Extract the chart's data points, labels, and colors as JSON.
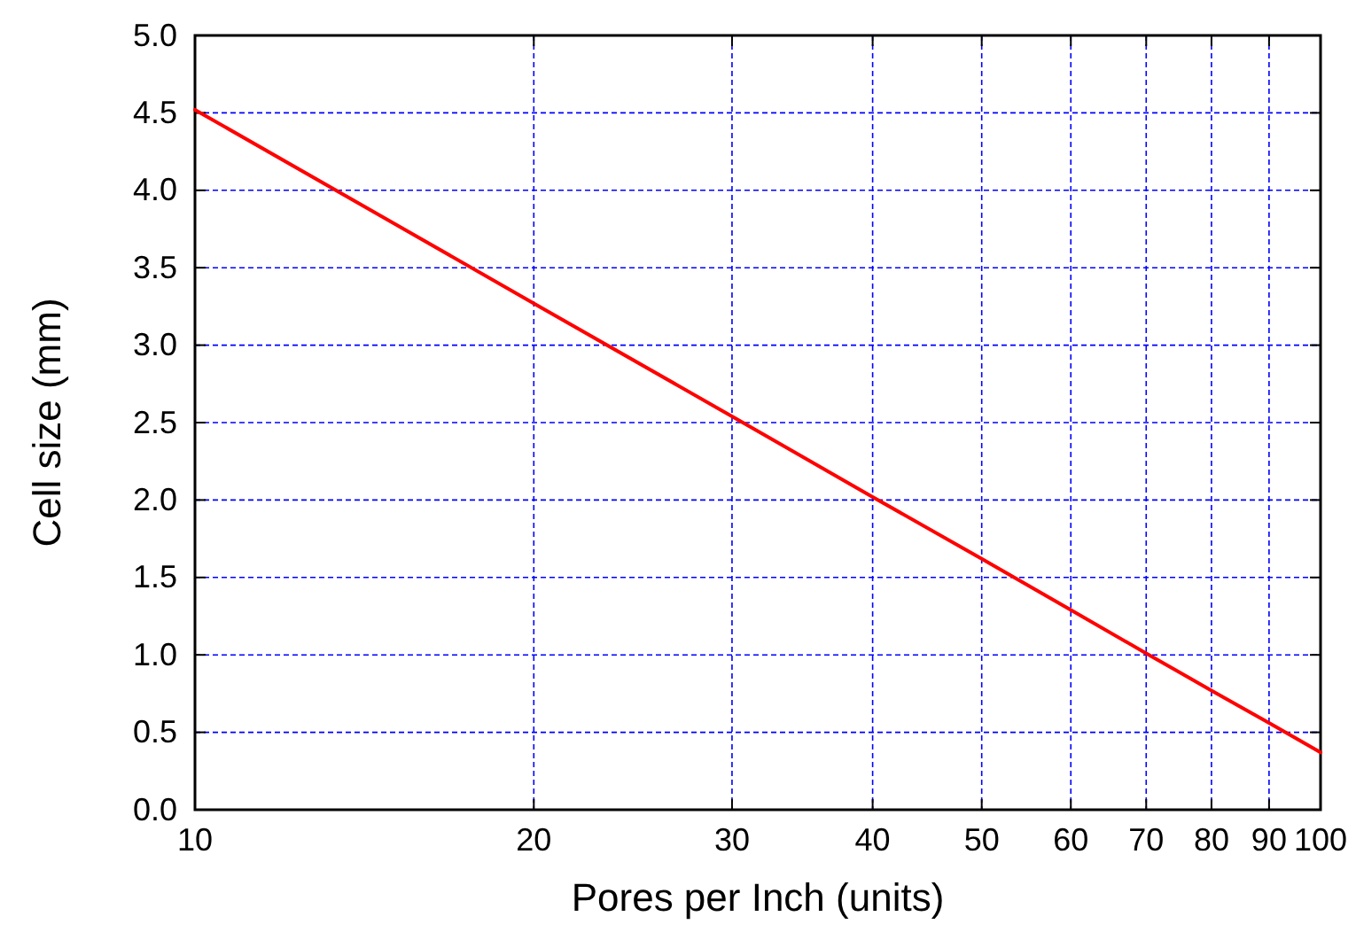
{
  "chart_data": {
    "type": "line",
    "xlabel": "Pores per Inch (units)",
    "ylabel": "Cell size (mm)",
    "log": "x",
    "x": [
      10,
      20,
      30,
      40,
      50,
      60,
      70,
      80,
      90,
      100
    ],
    "series": [
      {
        "color": "#ff0000",
        "values": [
          4.52,
          3.27,
          2.54,
          2.02,
          1.62,
          1.29,
          1.01,
          0.77,
          0.56,
          0.37
        ]
      }
    ],
    "xlim": [
      10,
      100
    ],
    "xticks": [
      10,
      20,
      30,
      40,
      50,
      60,
      70,
      80,
      90,
      100
    ],
    "ylim": [
      0,
      5
    ],
    "yticks": [
      {
        "value": 0,
        "label": "0.0"
      },
      {
        "value": 0.5,
        "label": "0.5"
      },
      {
        "value": 1,
        "label": "1.0"
      },
      {
        "value": 1.5,
        "label": "1.5"
      },
      {
        "value": 2,
        "label": "2.0"
      },
      {
        "value": 2.5,
        "label": "2.5"
      },
      {
        "value": 3,
        "label": "3.0"
      },
      {
        "value": 3.5,
        "label": "3.5"
      },
      {
        "value": 4,
        "label": "4.0"
      },
      {
        "value": 4.5,
        "label": "4.5"
      },
      {
        "value": 5,
        "label": "5.0"
      }
    ],
    "grid": true,
    "marker": "none",
    "line_style": "solid"
  }
}
